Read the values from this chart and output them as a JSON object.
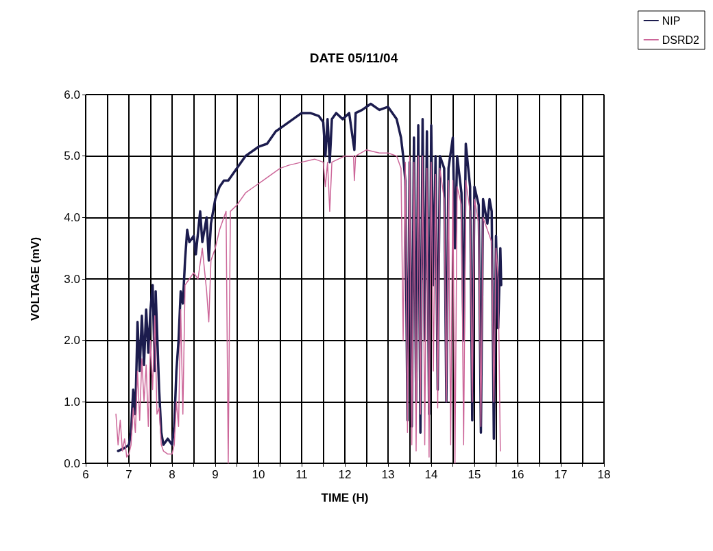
{
  "chart_data": {
    "type": "line",
    "title": "DATE 05/11/04",
    "xlabel": "TIME (H)",
    "ylabel": "VOLTAGE (mV)",
    "xlim": [
      6,
      18
    ],
    "xticks": [
      6,
      {
        "value": 6.5,
        "label": null
      },
      7,
      {
        "value": 7.5,
        "label": null
      },
      8,
      {
        "value": 8.5,
        "label": null
      },
      9,
      {
        "value": 9.5,
        "label": null
      },
      10,
      {
        "value": 10.5,
        "label": null
      },
      11,
      {
        "value": 11.5,
        "label": null
      },
      12,
      {
        "value": 12.5,
        "label": null
      },
      13,
      {
        "value": 13.5,
        "label": null
      },
      14,
      {
        "value": 14.5,
        "label": null
      },
      15,
      {
        "value": 15.5,
        "label": null
      },
      16,
      {
        "value": 16.5,
        "label": null
      },
      17,
      {
        "value": 17.5,
        "label": null
      },
      18
    ],
    "ylim": [
      0,
      6
    ],
    "yticks": [
      {
        "value": 0,
        "label": "0.0"
      },
      {
        "value": 1,
        "label": "1.0"
      },
      {
        "value": 2,
        "label": "2.0"
      },
      {
        "value": 3,
        "label": "3.0"
      },
      {
        "value": 4,
        "label": "4.0"
      },
      {
        "value": 5,
        "label": "5.0"
      },
      {
        "value": 6,
        "label": "6.0"
      }
    ],
    "grid": true,
    "legend": "top right",
    "marker": "none",
    "line_style": "solid",
    "series": [
      {
        "name": "NIP",
        "color": "#1c1c4e",
        "x": [
          6.75,
          6.9,
          7.0,
          7.05,
          7.1,
          7.15,
          7.2,
          7.25,
          7.3,
          7.35,
          7.4,
          7.45,
          7.5,
          7.55,
          7.6,
          7.62,
          7.7,
          7.75,
          7.8,
          7.9,
          8.0,
          8.05,
          8.1,
          8.15,
          8.2,
          8.25,
          8.3,
          8.35,
          8.4,
          8.5,
          8.55,
          8.65,
          8.7,
          8.8,
          8.85,
          8.9,
          9.0,
          9.1,
          9.2,
          9.3,
          9.5,
          9.7,
          9.9,
          10.0,
          10.2,
          10.4,
          10.6,
          10.8,
          11.0,
          11.2,
          11.4,
          11.5,
          11.55,
          11.6,
          11.65,
          11.7,
          11.8,
          11.95,
          12.1,
          12.22,
          12.25,
          12.4,
          12.6,
          12.8,
          13.0,
          13.2,
          13.3,
          13.35,
          13.4,
          13.45,
          13.5,
          13.55,
          13.6,
          13.65,
          13.7,
          13.75,
          13.8,
          13.85,
          13.9,
          13.95,
          14.0,
          14.05,
          14.1,
          14.15,
          14.2,
          14.3,
          14.35,
          14.4,
          14.5,
          14.55,
          14.6,
          14.7,
          14.75,
          14.8,
          14.9,
          14.95,
          15.0,
          15.1,
          15.15,
          15.2,
          15.3,
          15.35,
          15.4,
          15.45,
          15.5,
          15.55,
          15.6,
          15.62
        ],
        "values": [
          0.2,
          0.25,
          0.3,
          0.5,
          1.2,
          0.8,
          2.3,
          1.5,
          2.4,
          1.6,
          2.5,
          1.8,
          2.5,
          2.9,
          1.5,
          2.8,
          1.2,
          0.5,
          0.3,
          0.4,
          0.3,
          0.6,
          1.5,
          2.0,
          2.8,
          2.6,
          3.3,
          3.8,
          3.6,
          3.7,
          3.4,
          4.1,
          3.6,
          4.0,
          3.3,
          3.9,
          4.3,
          4.5,
          4.6,
          4.6,
          4.8,
          5.0,
          5.1,
          5.15,
          5.2,
          5.4,
          5.5,
          5.6,
          5.7,
          5.7,
          5.65,
          5.55,
          5.0,
          5.6,
          4.9,
          5.6,
          5.7,
          5.6,
          5.7,
          5.1,
          5.7,
          5.75,
          5.85,
          5.75,
          5.8,
          5.6,
          5.3,
          5.0,
          4.6,
          0.7,
          4.9,
          0.6,
          5.3,
          1.0,
          5.5,
          0.5,
          5.6,
          2.0,
          5.4,
          0.8,
          5.5,
          2.9,
          5.0,
          1.2,
          5.0,
          4.8,
          1.0,
          4.8,
          5.3,
          3.5,
          5.0,
          4.4,
          2.0,
          5.2,
          4.5,
          0.7,
          4.5,
          4.2,
          0.5,
          4.3,
          3.9,
          4.3,
          4.1,
          0.4,
          3.7,
          2.2,
          3.5,
          2.9
        ]
      },
      {
        "name": "DSRD2",
        "color": "#cc6699",
        "x": [
          6.7,
          6.75,
          6.8,
          6.85,
          6.9,
          6.95,
          7.0,
          7.05,
          7.1,
          7.15,
          7.2,
          7.25,
          7.3,
          7.35,
          7.4,
          7.45,
          7.5,
          7.55,
          7.6,
          7.65,
          7.7,
          7.75,
          7.8,
          7.9,
          8.0,
          8.05,
          8.1,
          8.15,
          8.2,
          8.25,
          8.3,
          8.4,
          8.5,
          8.6,
          8.7,
          8.8,
          8.85,
          8.9,
          9.0,
          9.1,
          9.2,
          9.25,
          9.3,
          9.35,
          9.5,
          9.7,
          9.9,
          10.1,
          10.3,
          10.5,
          10.7,
          11.0,
          11.3,
          11.5,
          11.55,
          11.6,
          11.65,
          11.7,
          12.0,
          12.2,
          12.22,
          12.25,
          12.5,
          12.8,
          13.0,
          13.2,
          13.3,
          13.35,
          13.4,
          13.45,
          13.5,
          13.55,
          13.6,
          13.65,
          13.7,
          13.75,
          13.8,
          13.85,
          13.9,
          13.95,
          14.0,
          14.05,
          14.1,
          14.15,
          14.2,
          14.3,
          14.35,
          14.4,
          14.45,
          14.5,
          14.55,
          14.6,
          14.7,
          14.75,
          14.8,
          14.9,
          14.95,
          15.0,
          15.1,
          15.15,
          15.2,
          15.3,
          15.4,
          15.45,
          15.5,
          15.55,
          15.6
        ],
        "values": [
          0.8,
          0.3,
          0.7,
          0.2,
          0.4,
          0.1,
          0.15,
          0.3,
          0.9,
          0.5,
          1.5,
          0.7,
          1.7,
          1.0,
          1.6,
          0.6,
          2.0,
          1.2,
          2.4,
          0.8,
          0.9,
          0.3,
          0.2,
          0.15,
          0.15,
          0.3,
          1.0,
          0.6,
          2.5,
          0.8,
          2.9,
          3.0,
          3.1,
          3.0,
          3.5,
          2.8,
          2.3,
          3.3,
          3.5,
          3.8,
          4.0,
          4.1,
          0.0,
          4.1,
          4.2,
          4.4,
          4.5,
          4.6,
          4.7,
          4.8,
          4.85,
          4.9,
          4.95,
          4.9,
          4.5,
          4.9,
          4.1,
          4.9,
          5.0,
          5.0,
          4.6,
          5.0,
          5.1,
          5.05,
          5.05,
          5.0,
          4.8,
          2.0,
          4.9,
          0.5,
          5.0,
          0.3,
          4.9,
          0.2,
          5.0,
          0.8,
          5.0,
          0.3,
          4.8,
          0.1,
          4.9,
          1.5,
          4.7,
          0.9,
          4.8,
          4.3,
          1.0,
          4.6,
          0.3,
          4.6,
          0.0,
          4.5,
          4.2,
          0.3,
          4.6,
          4.1,
          1.0,
          4.3,
          3.9,
          0.6,
          4.0,
          3.8,
          3.6,
          1.0,
          3.5,
          3.0,
          0.2
        ]
      }
    ]
  }
}
